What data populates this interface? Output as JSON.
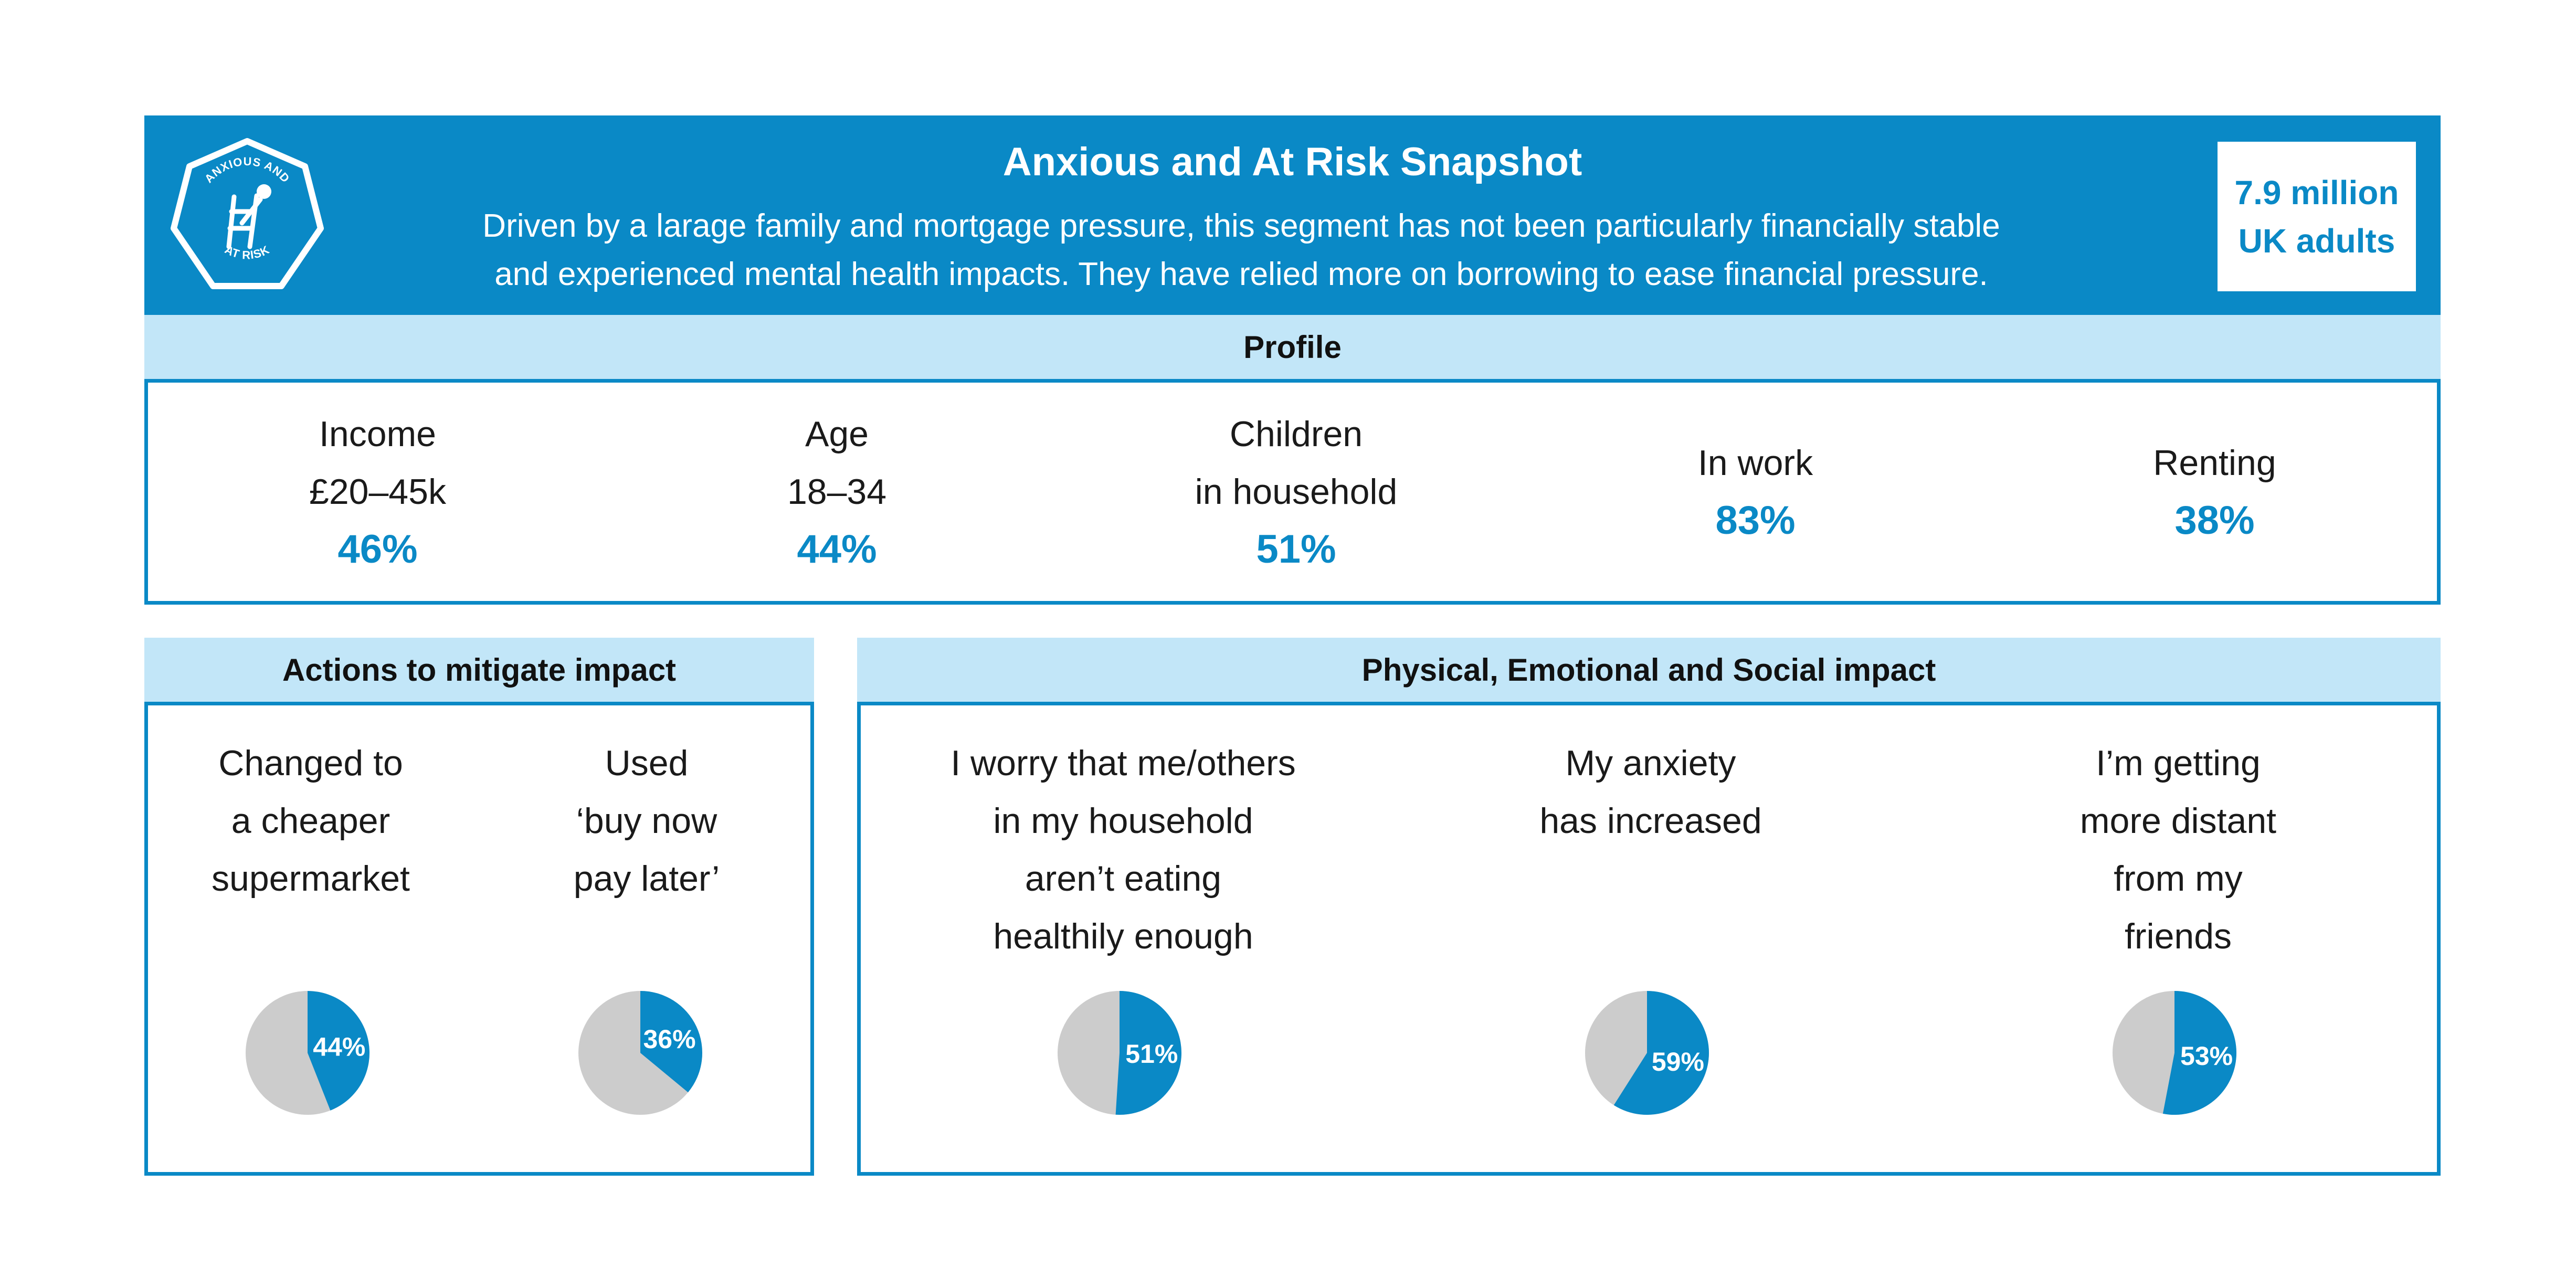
{
  "header": {
    "badge_top": "ANXIOUS AND",
    "badge_bottom": "AT RISK",
    "title": "Anxious and At Risk Snapshot",
    "subtitle_line1": "Driven by a larage family and mortgage pressure, this segment has not been particularly financially stable",
    "subtitle_line2": "and experienced mental health impacts. They have relied more on borrowing to ease financial pressure.",
    "population_line1": "7.9 million",
    "population_line2": "UK adults"
  },
  "colors": {
    "brand_blue": "#0a89c6",
    "light_blue": "#c2e6f8",
    "pie_grey": "#cccccc",
    "white": "#ffffff"
  },
  "profile": {
    "heading": "Profile",
    "stats": [
      {
        "line1": "Income",
        "line2": "£20–45k",
        "value": "46%"
      },
      {
        "line1": "Age",
        "line2": "18–34",
        "value": "44%"
      },
      {
        "line1": "Children",
        "line2": "in household",
        "value": "51%"
      },
      {
        "line1": "In work",
        "line2": "",
        "value": "83%"
      },
      {
        "line1": "Renting",
        "line2": "",
        "value": "38%"
      }
    ]
  },
  "actions": {
    "heading": "Actions to mitigate impact",
    "items": [
      {
        "lines": [
          "Changed to",
          "a cheaper",
          "supermarket"
        ]
      },
      {
        "lines": [
          "Used",
          "‘buy now",
          "pay later’"
        ]
      }
    ]
  },
  "impact": {
    "heading": "Physical, Emotional and Social impact",
    "items": [
      {
        "lines": [
          "I worry that me/others",
          "in my household",
          "aren’t eating",
          "healthily enough"
        ]
      },
      {
        "lines": [
          "My anxiety",
          "has increased"
        ]
      },
      {
        "lines": [
          "I’m getting",
          "more distant",
          "from my",
          "friends"
        ]
      }
    ]
  },
  "chart_data": [
    {
      "type": "pie",
      "category": "Changed to a cheaper supermarket",
      "value": 44,
      "label": "44%"
    },
    {
      "type": "pie",
      "category": "Used ‘buy now pay later’",
      "value": 36,
      "label": "36%"
    },
    {
      "type": "pie",
      "category": "I worry that me/others in my household aren’t eating healthily enough",
      "value": 51,
      "label": "51%"
    },
    {
      "type": "pie",
      "category": "My anxiety has increased",
      "value": 59,
      "label": "59%"
    },
    {
      "type": "pie",
      "category": "I’m getting more distant from my friends",
      "value": 53,
      "label": "53%"
    }
  ]
}
